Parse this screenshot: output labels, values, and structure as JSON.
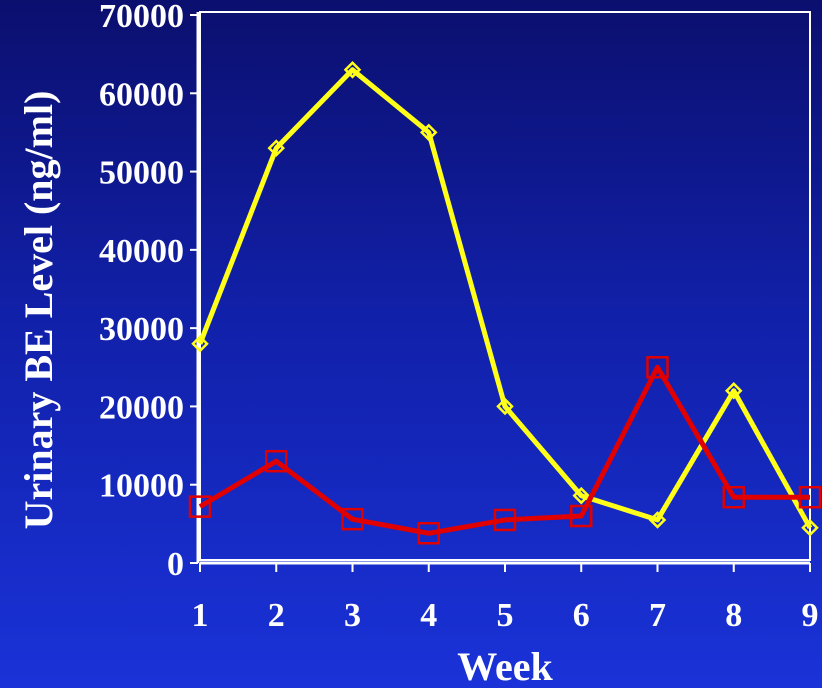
{
  "chart_data": {
    "type": "line",
    "title": "",
    "xlabel": "Week",
    "ylabel": "Urinary BE Level (ng/ml)",
    "x": [
      1,
      2,
      3,
      4,
      5,
      6,
      7,
      8,
      9
    ],
    "x_tick_labels": [
      "1",
      "2",
      "3",
      "4",
      "5",
      "6",
      "7",
      "8",
      "9"
    ],
    "ylim": [
      0,
      70000
    ],
    "y_ticks": [
      0,
      10000,
      20000,
      30000,
      40000,
      50000,
      60000,
      70000
    ],
    "y_tick_labels": [
      "0",
      "10000",
      "20000",
      "30000",
      "40000",
      "50000",
      "60000",
      "70000"
    ],
    "grid": false,
    "legend": "none",
    "series": [
      {
        "color": "#ffff1a",
        "marker": "diamond",
        "values": [
          28000,
          53000,
          63000,
          55000,
          20000,
          8600,
          5500,
          22000,
          4500
        ]
      },
      {
        "color": "#e00000",
        "marker": "square",
        "values": [
          7200,
          13000,
          5600,
          3800,
          5500,
          6000,
          25000,
          8400,
          8400
        ]
      }
    ]
  }
}
